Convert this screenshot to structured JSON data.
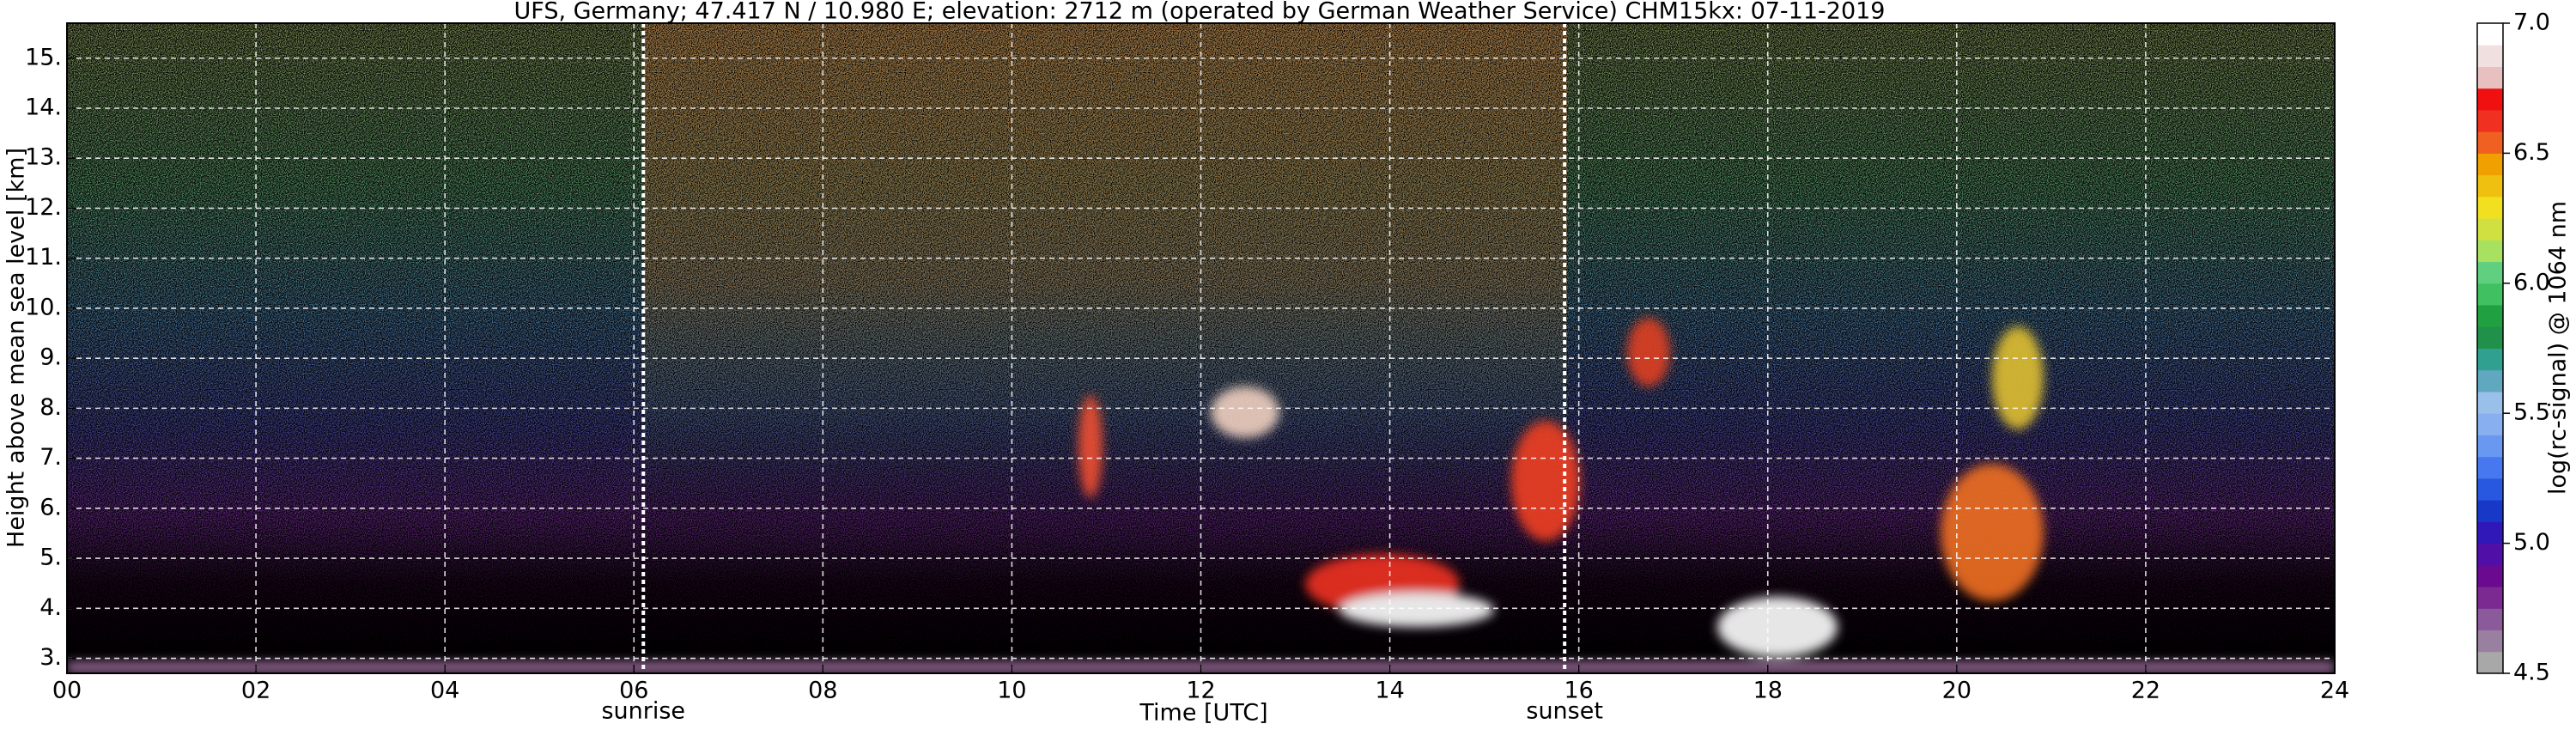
{
  "chart_data": {
    "type": "heatmap",
    "title": "UFS, Germany; 47.417 N / 10.980 E; elevation: 2712 m  (operated by German Weather Service)    CHM15kx: 07-11-2019",
    "x_label": "Time [UTC]",
    "y_label": "Height above mean sea level [km]",
    "colorbar_label": "log(rc-signal) @ 1064 nm",
    "xlim": [
      0,
      24
    ],
    "xticks": [
      {
        "value": 0,
        "label": "00"
      },
      {
        "value": 2,
        "label": "02"
      },
      {
        "value": 4,
        "label": "04"
      },
      {
        "value": 6,
        "label": "06"
      },
      {
        "value": 8,
        "label": "08"
      },
      10,
      12,
      14,
      16,
      18,
      20,
      22,
      24
    ],
    "ylim": [
      2.7,
      15.7
    ],
    "yticks": [
      {
        "value": 3,
        "label": "3."
      },
      {
        "value": 4,
        "label": "4."
      },
      {
        "value": 5,
        "label": "5."
      },
      {
        "value": 6,
        "label": "6."
      },
      {
        "value": 7,
        "label": "7."
      },
      {
        "value": 8,
        "label": "8."
      },
      {
        "value": 9,
        "label": "9."
      },
      {
        "value": 10,
        "label": "10."
      },
      {
        "value": 11,
        "label": "11."
      },
      {
        "value": 12,
        "label": "12."
      },
      {
        "value": 13,
        "label": "13."
      },
      {
        "value": 14,
        "label": "14."
      },
      {
        "value": 15,
        "label": "15."
      }
    ],
    "grid": true,
    "annotations": [
      {
        "text": "sunrise",
        "x": 6.1
      },
      {
        "text": "sunset",
        "x": 15.85
      }
    ],
    "colorbar_lim": [
      4.5,
      7.0
    ],
    "colorbar_ticks": [
      {
        "value": 4.5,
        "label": "4.5"
      },
      {
        "value": 5.0,
        "label": "5.0"
      },
      {
        "value": 5.5,
        "label": "5.5"
      },
      {
        "value": 6.0,
        "label": "6.0"
      },
      {
        "value": 6.5,
        "label": "6.5"
      },
      {
        "value": 7.0,
        "label": "7.0"
      }
    ],
    "colormap": [
      "#a8a8a8",
      "#9a80a0",
      "#8a5a9a",
      "#7a2a90",
      "#6a0a90",
      "#5010a8",
      "#3018b8",
      "#1838c8",
      "#2858e0",
      "#4878f0",
      "#6898f0",
      "#88b0f0",
      "#98c0e8",
      "#60a8c0",
      "#30a090",
      "#20904a",
      "#20a040",
      "#40c060",
      "#60d080",
      "#a8e060",
      "#d0e040",
      "#f0e020",
      "#f0c010",
      "#f0a000",
      "#f06020",
      "#f03020",
      "#f01010",
      "#e8c0c0",
      "#f0e0e0",
      "#ffffff"
    ]
  }
}
